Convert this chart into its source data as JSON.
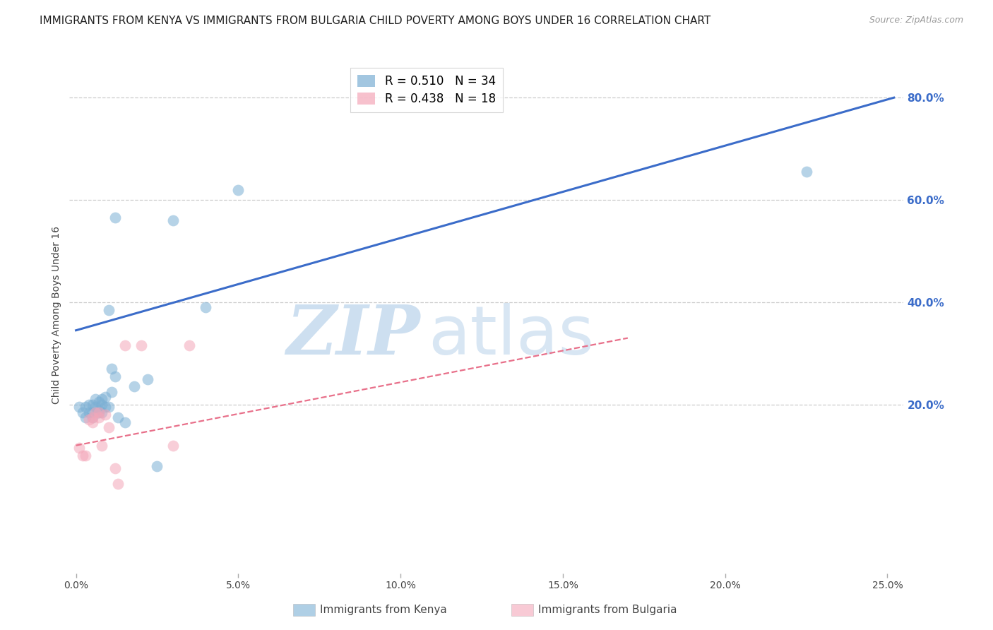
{
  "title": "IMMIGRANTS FROM KENYA VS IMMIGRANTS FROM BULGARIA CHILD POVERTY AMONG BOYS UNDER 16 CORRELATION CHART",
  "source": "Source: ZipAtlas.com",
  "ylabel": "Child Poverty Among Boys Under 16",
  "x_tick_labels": [
    "0.0%",
    "5.0%",
    "10.0%",
    "15.0%",
    "20.0%",
    "25.0%"
  ],
  "x_tick_values": [
    0.0,
    0.05,
    0.1,
    0.15,
    0.2,
    0.25
  ],
  "y_tick_labels": [
    "20.0%",
    "40.0%",
    "60.0%",
    "80.0%"
  ],
  "y_tick_values": [
    0.2,
    0.4,
    0.6,
    0.8
  ],
  "xlim": [
    -0.002,
    0.255
  ],
  "ylim": [
    -0.13,
    0.88
  ],
  "kenya_R": 0.51,
  "kenya_N": 34,
  "bulgaria_R": 0.438,
  "bulgaria_N": 18,
  "kenya_color": "#7BAFD4",
  "bulgaria_color": "#F4A7B9",
  "kenya_line_color": "#3B6CC9",
  "bulgaria_line_color": "#E8708A",
  "watermark_zip": "ZIP",
  "watermark_atlas": "atlas",
  "legend_label_kenya": "Immigrants from Kenya",
  "legend_label_bulgaria": "Immigrants from Bulgaria",
  "kenya_scatter_x": [
    0.001,
    0.002,
    0.003,
    0.003,
    0.004,
    0.004,
    0.005,
    0.005,
    0.005,
    0.006,
    0.006,
    0.007,
    0.007,
    0.007,
    0.008,
    0.008,
    0.008,
    0.009,
    0.009,
    0.01,
    0.01,
    0.011,
    0.011,
    0.012,
    0.012,
    0.013,
    0.015,
    0.018,
    0.022,
    0.025,
    0.03,
    0.04,
    0.05,
    0.225
  ],
  "kenya_scatter_y": [
    0.195,
    0.185,
    0.195,
    0.175,
    0.2,
    0.185,
    0.185,
    0.175,
    0.2,
    0.21,
    0.195,
    0.205,
    0.19,
    0.185,
    0.21,
    0.2,
    0.185,
    0.215,
    0.195,
    0.385,
    0.195,
    0.225,
    0.27,
    0.565,
    0.255,
    0.175,
    0.165,
    0.235,
    0.25,
    0.08,
    0.56,
    0.39,
    0.62,
    0.655
  ],
  "bulgaria_scatter_x": [
    0.001,
    0.002,
    0.003,
    0.004,
    0.005,
    0.005,
    0.006,
    0.007,
    0.007,
    0.008,
    0.009,
    0.01,
    0.012,
    0.013,
    0.015,
    0.02,
    0.03,
    0.035
  ],
  "bulgaria_scatter_y": [
    0.115,
    0.1,
    0.1,
    0.17,
    0.165,
    0.175,
    0.185,
    0.175,
    0.185,
    0.12,
    0.18,
    0.155,
    0.075,
    0.045,
    0.315,
    0.315,
    0.12,
    0.315
  ],
  "kenya_line_x": [
    0.0,
    0.252
  ],
  "kenya_line_y": [
    0.345,
    0.8
  ],
  "bulgaria_line_x": [
    0.0,
    0.17
  ],
  "bulgaria_line_y": [
    0.12,
    0.33
  ],
  "grid_color": "#CCCCCC",
  "background_color": "#FFFFFF",
  "title_fontsize": 11,
  "axis_label_fontsize": 10,
  "tick_fontsize": 10,
  "right_axis_color": "#3B6CC9"
}
